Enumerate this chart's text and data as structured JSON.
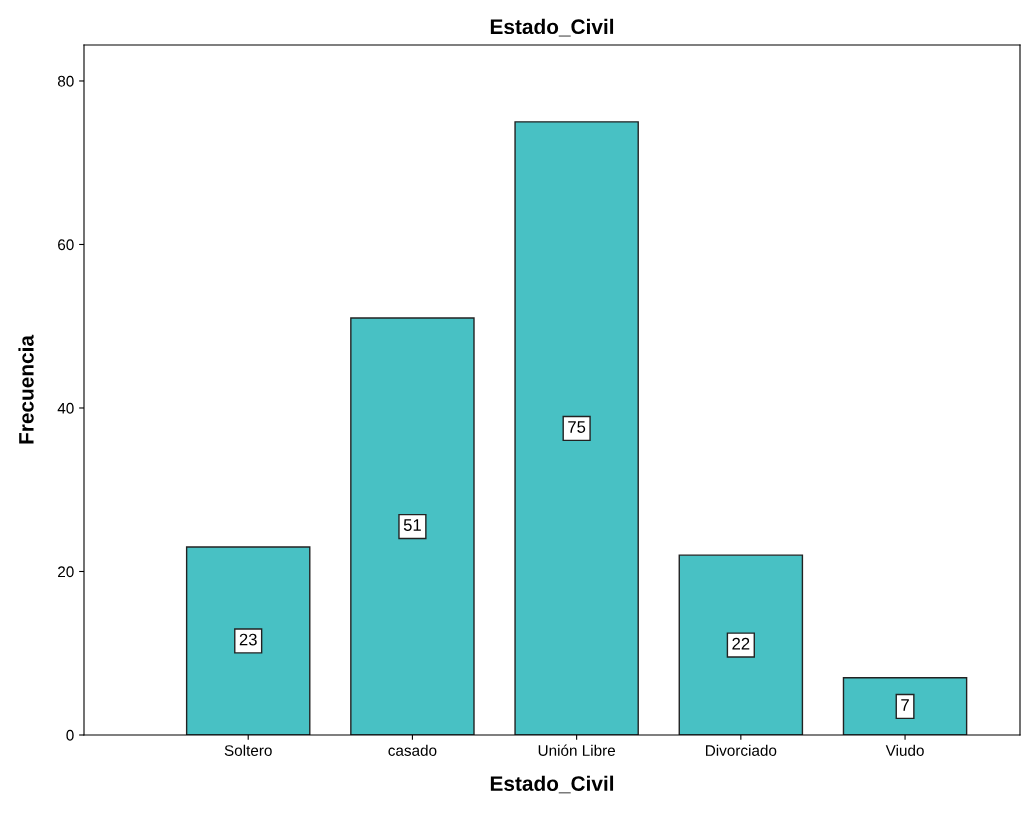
{
  "chart_data": {
    "type": "bar",
    "title": "Estado_Civil",
    "xlabel": "Estado_Civil",
    "ylabel": "Frecuencia",
    "categories": [
      "Soltero",
      "casado",
      "Unión Libre",
      "Divorciado",
      "Viudo"
    ],
    "values": [
      23,
      51,
      75,
      22,
      7
    ],
    "color": "#48c1c4",
    "ylim": [
      0,
      84.4
    ],
    "yticks": [
      0,
      20,
      40,
      60,
      80
    ],
    "grid": false,
    "data_labels": true
  }
}
